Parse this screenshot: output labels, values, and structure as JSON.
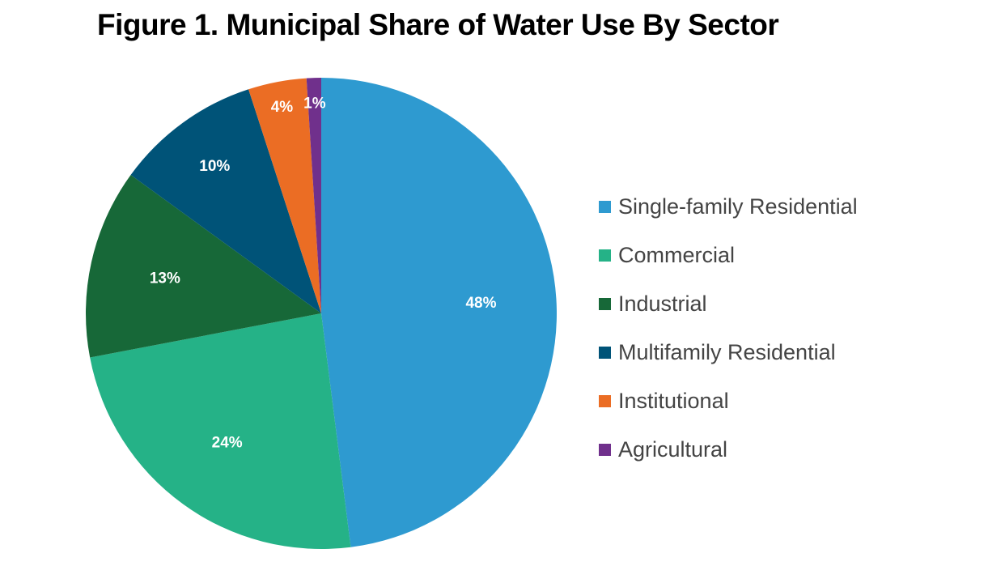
{
  "chart_data": {
    "type": "pie",
    "title": "Figure 1. Municipal Share of Water Use By Sector",
    "legend_position": "right",
    "slices": [
      {
        "label": "Single-family Residential",
        "value": 48,
        "display": "48%",
        "color": "#2e9ad0"
      },
      {
        "label": "Commercial",
        "value": 24,
        "display": "24%",
        "color": "#25b287"
      },
      {
        "label": "Industrial",
        "value": 13,
        "display": "13%",
        "color": "#176838"
      },
      {
        "label": "Multifamily Residential",
        "value": 10,
        "display": "10%",
        "color": "#005378"
      },
      {
        "label": "Institutional",
        "value": 4,
        "display": "4%",
        "color": "#eb6d24"
      },
      {
        "label": "Agricultural",
        "value": 1,
        "display": "1%",
        "color": "#70308c"
      }
    ]
  }
}
